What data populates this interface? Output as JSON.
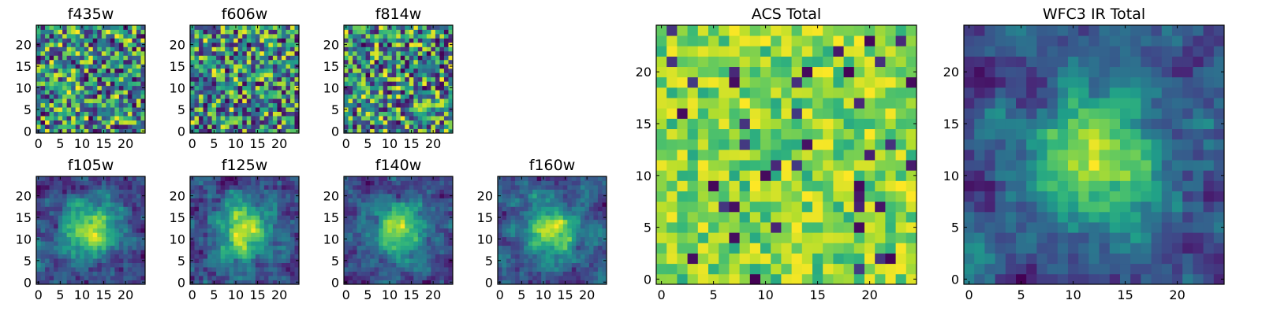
{
  "chart_data": [
    {
      "type": "heatmap",
      "title": "f435w",
      "grid_size": 25,
      "xticks": [
        0,
        5,
        10,
        15,
        20
      ],
      "yticks": [
        0,
        5,
        10,
        15,
        20
      ],
      "xlim": [
        -0.5,
        24.5
      ],
      "ylim": [
        -0.5,
        24.5
      ],
      "colormap": "viridis",
      "pattern": "uniform-noise",
      "seed": 101
    },
    {
      "type": "heatmap",
      "title": "f606w",
      "grid_size": 25,
      "xticks": [
        0,
        5,
        10,
        15,
        20
      ],
      "yticks": [
        0,
        5,
        10,
        15,
        20
      ],
      "xlim": [
        -0.5,
        24.5
      ],
      "ylim": [
        -0.5,
        24.5
      ],
      "colormap": "viridis",
      "pattern": "uniform-noise",
      "seed": 202
    },
    {
      "type": "heatmap",
      "title": "f814w",
      "grid_size": 25,
      "xticks": [
        0,
        5,
        10,
        15,
        20
      ],
      "yticks": [
        0,
        5,
        10,
        15,
        20
      ],
      "xlim": [
        -0.5,
        24.5
      ],
      "ylim": [
        -0.5,
        24.5
      ],
      "colormap": "viridis",
      "pattern": "uniform-noise",
      "seed": 303
    },
    {
      "type": "heatmap",
      "title": "f105w",
      "grid_size": 25,
      "xticks": [
        0,
        5,
        10,
        15,
        20
      ],
      "yticks": [
        0,
        5,
        10,
        15,
        20
      ],
      "xlim": [
        -0.5,
        24.5
      ],
      "ylim": [
        -0.5,
        24.5
      ],
      "colormap": "viridis",
      "pattern": "smooth-source",
      "seed": 404
    },
    {
      "type": "heatmap",
      "title": "f125w",
      "grid_size": 25,
      "xticks": [
        0,
        5,
        10,
        15,
        20
      ],
      "yticks": [
        0,
        5,
        10,
        15,
        20
      ],
      "xlim": [
        -0.5,
        24.5
      ],
      "ylim": [
        -0.5,
        24.5
      ],
      "colormap": "viridis",
      "pattern": "smooth-source",
      "seed": 505
    },
    {
      "type": "heatmap",
      "title": "f140w",
      "grid_size": 25,
      "xticks": [
        0,
        5,
        10,
        15,
        20
      ],
      "yticks": [
        0,
        5,
        10,
        15,
        20
      ],
      "xlim": [
        -0.5,
        24.5
      ],
      "ylim": [
        -0.5,
        24.5
      ],
      "colormap": "viridis",
      "pattern": "smooth-source",
      "seed": 606
    },
    {
      "type": "heatmap",
      "title": "f160w",
      "grid_size": 25,
      "xticks": [
        0,
        5,
        10,
        15,
        20
      ],
      "yticks": [
        0,
        5,
        10,
        15,
        20
      ],
      "xlim": [
        -0.5,
        24.5
      ],
      "ylim": [
        -0.5,
        24.5
      ],
      "colormap": "viridis",
      "pattern": "smooth-source",
      "seed": 707
    },
    {
      "type": "heatmap",
      "title": "ACS Total",
      "grid_size": 25,
      "xticks": [
        0,
        5,
        10,
        15,
        20
      ],
      "yticks": [
        0,
        5,
        10,
        15,
        20
      ],
      "xlim": [
        -0.5,
        24.5
      ],
      "ylim": [
        -0.5,
        24.5
      ],
      "colormap": "viridis",
      "pattern": "bright-noise",
      "seed": 808
    },
    {
      "type": "heatmap",
      "title": "WFC3 IR Total",
      "grid_size": 25,
      "xticks": [
        0,
        5,
        10,
        15,
        20
      ],
      "yticks": [
        0,
        5,
        10,
        15,
        20
      ],
      "xlim": [
        -0.5,
        24.5
      ],
      "ylim": [
        -0.5,
        24.5
      ],
      "colormap": "viridis",
      "pattern": "smooth-source",
      "seed": 909
    }
  ]
}
